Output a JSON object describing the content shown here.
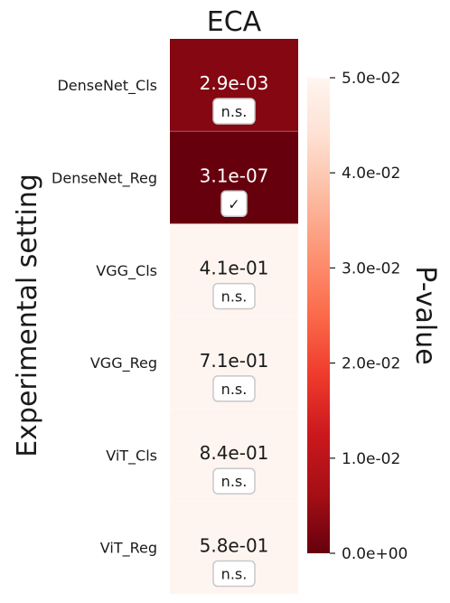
{
  "chart_data": {
    "type": "heatmap",
    "title": "ECA",
    "ylabel": "Experimental setting",
    "colorbar_label": "P-value",
    "colormap": "Reds_r",
    "color_range": [
      0.0,
      0.05
    ],
    "colorbar_ticks": [
      "0.0e+00",
      "1.0e-02",
      "2.0e-02",
      "3.0e-02",
      "4.0e-02",
      "5.0e-02"
    ],
    "colorbar_tick_values": [
      0.0,
      0.01,
      0.02,
      0.03,
      0.04,
      0.05
    ],
    "rows": [
      {
        "label": "DenseNet_Cls",
        "value": 0.0029,
        "text": "2.9e-03",
        "badge": "n.s."
      },
      {
        "label": "DenseNet_Reg",
        "value": 3.1e-07,
        "text": "3.1e-07",
        "badge": "✓"
      },
      {
        "label": "VGG_Cls",
        "value": 0.41,
        "text": "4.1e-01",
        "badge": "n.s."
      },
      {
        "label": "VGG_Reg",
        "value": 0.71,
        "text": "7.1e-01",
        "badge": "n.s."
      },
      {
        "label": "ViT_Cls",
        "value": 0.84,
        "text": "8.4e-01",
        "badge": "n.s."
      },
      {
        "label": "ViT_Reg",
        "value": 0.58,
        "text": "5.8e-01",
        "badge": "n.s."
      }
    ],
    "colors": {
      "darkest": "#67000d",
      "lightest": "#fff5f0",
      "text_on_dark": "#ffffff",
      "text_on_light": "#1a1a1a"
    }
  }
}
